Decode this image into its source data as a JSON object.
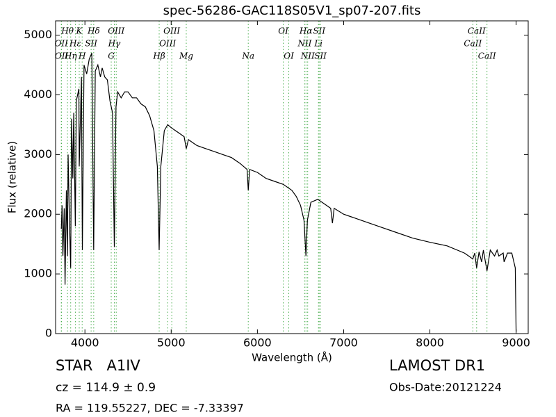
{
  "chart_data": {
    "type": "line",
    "title": "spec-56286-GAC118S05V1_sp07-207.fits",
    "x_label": "Wavelength (Å)",
    "y_label": "Flux (relative)",
    "color": "#000000",
    "line_color": "#4caf50",
    "xlim": [
      3660,
      9140
    ],
    "ylim": [
      0,
      5240
    ],
    "xticks": [
      4000,
      5000,
      6000,
      7000,
      8000,
      9000
    ],
    "yticks": [
      0,
      1000,
      2000,
      3000,
      4000,
      5000
    ],
    "x": [
      3726,
      3735,
      3745,
      3760,
      3770,
      3785,
      3797,
      3805,
      3820,
      3835,
      3845,
      3860,
      3870,
      3889,
      3900,
      3930,
      3934,
      3960,
      3970,
      3990,
      4020,
      4050,
      4080,
      4102,
      4120,
      4150,
      4180,
      4200,
      4230,
      4260,
      4290,
      4320,
      4341,
      4360,
      4380,
      4420,
      4460,
      4500,
      4550,
      4600,
      4650,
      4700,
      4750,
      4800,
      4840,
      4861,
      4880,
      4920,
      4960,
      5000,
      5050,
      5100,
      5150,
      5175,
      5200,
      5250,
      5300,
      5400,
      5500,
      5600,
      5700,
      5800,
      5880,
      5894,
      5910,
      6000,
      6100,
      6200,
      6300,
      6400,
      6450,
      6500,
      6540,
      6563,
      6580,
      6620,
      6700,
      6800,
      6850,
      6870,
      6890,
      7000,
      7100,
      7200,
      7400,
      7600,
      7800,
      8000,
      8200,
      8400,
      8450,
      8498,
      8520,
      8542,
      8570,
      8600,
      8620,
      8662,
      8700,
      8750,
      8780,
      8800,
      8850,
      8860,
      8900,
      8950,
      8990,
      9000
    ],
    "values": [
      1750,
      2150,
      1300,
      2100,
      820,
      2400,
      1300,
      3000,
      1900,
      1100,
      3600,
      2600,
      3700,
      1800,
      3900,
      4100,
      2800,
      4300,
      1400,
      4500,
      4350,
      4600,
      4700,
      1400,
      4400,
      4500,
      4300,
      4450,
      4300,
      4250,
      3900,
      3700,
      1450,
      3800,
      4050,
      3950,
      4050,
      4050,
      3950,
      3950,
      3850,
      3800,
      3650,
      3400,
      2800,
      1400,
      2800,
      3400,
      3500,
      3450,
      3400,
      3350,
      3300,
      3100,
      3250,
      3200,
      3150,
      3100,
      3050,
      3000,
      2950,
      2850,
      2750,
      2400,
      2750,
      2700,
      2600,
      2550,
      2500,
      2400,
      2300,
      2150,
      1900,
      1300,
      1900,
      2200,
      2250,
      2150,
      2100,
      1850,
      2100,
      2000,
      1950,
      1900,
      1800,
      1700,
      1600,
      1530,
      1470,
      1350,
      1300,
      1250,
      1350,
      1100,
      1370,
      1200,
      1400,
      1050,
      1400,
      1300,
      1400,
      1300,
      1350,
      1200,
      1350,
      1350,
      1100,
      30
    ],
    "spectral_lines": [
      {
        "label": "OII",
        "wavelength": 3726
      },
      {
        "label": "OII",
        "wavelength": 3729
      },
      {
        "label": "Hθ",
        "wavelength": 3798
      },
      {
        "label": "Hη",
        "wavelength": 3835
      },
      {
        "label": "Hε",
        "wavelength": 3889
      },
      {
        "label": "K",
        "wavelength": 3934
      },
      {
        "label": "H",
        "wavelength": 3968
      },
      {
        "label": "SII",
        "wavelength": 4072
      },
      {
        "label": "Hδ",
        "wavelength": 4102
      },
      {
        "label": "G",
        "wavelength": 4305
      },
      {
        "label": "Hγ",
        "wavelength": 4341
      },
      {
        "label": "OIII",
        "wavelength": 4363
      },
      {
        "label": "Hβ",
        "wavelength": 4861
      },
      {
        "label": "OIII",
        "wavelength": 4959
      },
      {
        "label": "OIII",
        "wavelength": 5007
      },
      {
        "label": "Mg",
        "wavelength": 5175
      },
      {
        "label": "Na",
        "wavelength": 5894
      },
      {
        "label": "OI",
        "wavelength": 6300
      },
      {
        "label": "OI",
        "wavelength": 6364
      },
      {
        "label": "NII",
        "wavelength": 6548
      },
      {
        "label": "Hα",
        "wavelength": 6563
      },
      {
        "label": "NII",
        "wavelength": 6583
      },
      {
        "label": "Li",
        "wavelength": 6708
      },
      {
        "label": "SII",
        "wavelength": 6716
      },
      {
        "label": "SII",
        "wavelength": 6731
      },
      {
        "label": "CaII",
        "wavelength": 8498
      },
      {
        "label": "CaII",
        "wavelength": 8542
      },
      {
        "label": "CaII",
        "wavelength": 8662
      }
    ]
  },
  "info": {
    "object": "STAR   A1IV",
    "survey": "LAMOST DR1",
    "redshift": "cz = 114.9 ± 0.9",
    "obs_date": "Obs-Date:20121224",
    "coords": "RA = 119.55227, DEC = -7.33397"
  }
}
